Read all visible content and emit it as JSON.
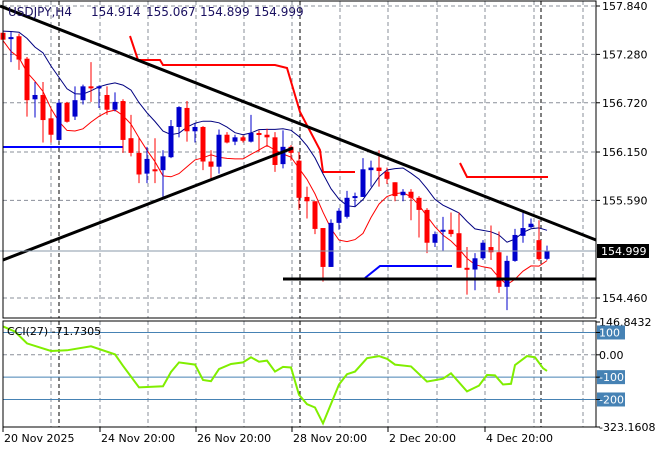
{
  "header": {
    "symbol": "USDJPY,H4",
    "open": "154.914",
    "high": "155.067",
    "low": "154.899",
    "close": "154.999"
  },
  "price_axis": {
    "labels": [
      "157.840",
      "157.280",
      "156.720",
      "156.150",
      "155.590",
      "154.460"
    ],
    "current": "154.999"
  },
  "time_axis": {
    "labels": [
      "20 Nov 2025",
      "24 Nov 20:00",
      "26 Nov 20:00",
      "28 Nov 20:00",
      "2 Dec 20:00",
      "4 Dec 20:00"
    ]
  },
  "indicator": {
    "label": "CCI(27) -71.7305",
    "axis_labels": {
      "max": "146.8432",
      "l100": "100",
      "zero": "0.00",
      "m100": "-100",
      "m200": "-200",
      "min": "-323.1608"
    }
  },
  "colors": {
    "bull": "#0000cc",
    "bear": "#ff0000",
    "ma_upper": "#000080",
    "ma_lower": "#ff0000",
    "cci": "#80ee00",
    "levels": "#4682b4",
    "trendline": "#000000"
  },
  "chart_data": {
    "type": "candlestick",
    "symbol": "USDJPY",
    "timeframe": "H4",
    "ylim": [
      154.46,
      157.84
    ],
    "candles": [
      [
        157.53,
        157.55,
        157.44,
        157.45
      ],
      [
        157.47,
        157.54,
        157.19,
        157.48
      ],
      [
        157.49,
        157.52,
        157.1,
        157.22
      ],
      [
        157.23,
        157.25,
        156.56,
        156.75
      ],
      [
        156.76,
        156.96,
        156.55,
        156.81
      ],
      [
        156.81,
        156.96,
        156.26,
        156.52
      ],
      [
        156.54,
        156.64,
        156.26,
        156.35
      ],
      [
        156.29,
        156.75,
        156.28,
        156.72
      ],
      [
        156.72,
        156.73,
        156.49,
        156.5
      ],
      [
        156.56,
        156.91,
        156.52,
        156.75
      ],
      [
        156.75,
        156.93,
        156.7,
        156.91
      ],
      [
        156.91,
        157.19,
        156.73,
        156.89
      ],
      [
        156.89,
        156.92,
        156.66,
        156.91
      ],
      [
        156.81,
        156.91,
        156.58,
        156.64
      ],
      [
        156.64,
        156.84,
        156.62,
        156.73
      ],
      [
        156.74,
        156.76,
        156.14,
        156.29
      ],
      [
        156.31,
        156.58,
        156.1,
        156.14
      ],
      [
        156.14,
        156.32,
        155.79,
        155.89
      ],
      [
        155.9,
        156.21,
        155.79,
        156.07
      ],
      [
        155.95,
        156.31,
        155.79,
        155.93
      ],
      [
        155.94,
        156.17,
        155.63,
        156.1
      ],
      [
        156.09,
        156.52,
        156.08,
        156.45
      ],
      [
        156.44,
        156.68,
        156.32,
        156.67
      ],
      [
        156.66,
        156.74,
        156.27,
        156.39
      ],
      [
        156.39,
        156.48,
        156.26,
        156.44
      ],
      [
        156.44,
        156.45,
        155.94,
        156.04
      ],
      [
        156.04,
        156.17,
        155.84,
        155.98
      ],
      [
        155.98,
        156.41,
        155.9,
        156.35
      ],
      [
        156.35,
        156.38,
        156.25,
        156.26
      ],
      [
        156.27,
        156.35,
        156.23,
        156.32
      ],
      [
        156.32,
        156.34,
        156.26,
        156.28
      ],
      [
        156.27,
        156.58,
        156.26,
        156.37
      ],
      [
        156.37,
        156.4,
        156.15,
        156.35
      ],
      [
        156.35,
        156.42,
        156.21,
        156.32
      ],
      [
        156.32,
        156.38,
        155.92,
        156.0
      ],
      [
        156.01,
        156.4,
        155.96,
        156.21
      ],
      [
        156.21,
        156.23,
        156.05,
        156.14
      ],
      [
        156.05,
        156.15,
        155.48,
        155.62
      ],
      [
        155.63,
        155.75,
        155.38,
        155.58
      ],
      [
        155.58,
        155.58,
        155.2,
        155.26
      ],
      [
        155.27,
        155.27,
        154.65,
        154.82
      ],
      [
        154.82,
        155.37,
        154.82,
        155.33
      ],
      [
        155.33,
        155.5,
        155.25,
        155.47
      ],
      [
        155.4,
        155.7,
        155.38,
        155.62
      ],
      [
        155.62,
        155.68,
        155.52,
        155.64
      ],
      [
        155.63,
        156.08,
        155.63,
        155.95
      ],
      [
        155.94,
        156.05,
        155.75,
        155.97
      ],
      [
        155.97,
        156.17,
        155.75,
        155.93
      ],
      [
        155.92,
        155.97,
        155.78,
        155.84
      ],
      [
        155.8,
        155.8,
        155.58,
        155.64
      ],
      [
        155.65,
        155.72,
        155.58,
        155.69
      ],
      [
        155.69,
        155.72,
        155.36,
        155.62
      ],
      [
        155.62,
        155.64,
        155.16,
        155.48
      ],
      [
        155.48,
        155.5,
        154.98,
        155.1
      ],
      [
        155.1,
        155.23,
        155.05,
        155.2
      ],
      [
        155.23,
        155.4,
        155.0,
        155.25
      ],
      [
        155.25,
        155.45,
        155.17,
        155.2
      ],
      [
        155.21,
        155.45,
        154.81,
        154.81
      ],
      [
        154.81,
        155.05,
        154.5,
        154.8
      ],
      [
        154.79,
        154.98,
        154.55,
        154.92
      ],
      [
        154.92,
        155.13,
        154.9,
        155.1
      ],
      [
        155.05,
        155.3,
        154.9,
        154.99
      ],
      [
        154.99,
        155.23,
        154.52,
        154.59
      ],
      [
        154.59,
        154.95,
        154.32,
        154.89
      ],
      [
        154.89,
        155.26,
        154.88,
        155.19
      ],
      [
        155.18,
        155.45,
        155.1,
        155.27
      ],
      [
        155.28,
        155.38,
        155.27,
        155.32
      ],
      [
        155.13,
        155.36,
        154.89,
        154.91
      ],
      [
        154.914,
        155.067,
        154.899,
        154.999
      ]
    ],
    "cci_ylim": [
      -323.1608,
      146.8432
    ],
    "cci_levels": [
      100,
      0,
      -100,
      -200
    ],
    "cci_points": [
      [
        0,
        127
      ],
      [
        1.5,
        104
      ],
      [
        3,
        51
      ],
      [
        6,
        17
      ],
      [
        8,
        20
      ],
      [
        11,
        38
      ],
      [
        14,
        2
      ],
      [
        15,
        -49
      ],
      [
        17,
        -146
      ],
      [
        20,
        -141
      ],
      [
        21,
        -77
      ],
      [
        22,
        -34
      ],
      [
        24,
        -44
      ],
      [
        25,
        -113
      ],
      [
        26,
        -118
      ],
      [
        27,
        -64
      ],
      [
        28.5,
        -41
      ],
      [
        30,
        -34
      ],
      [
        31,
        -11
      ],
      [
        32,
        -31
      ],
      [
        33,
        -26
      ],
      [
        34,
        -75
      ],
      [
        35,
        -54
      ],
      [
        36,
        -57
      ],
      [
        37,
        -179
      ],
      [
        38,
        -221
      ],
      [
        39,
        -236
      ],
      [
        40,
        -307
      ],
      [
        42,
        -133
      ],
      [
        43,
        -87
      ],
      [
        44,
        -75
      ],
      [
        45.5,
        -15
      ],
      [
        47,
        -6
      ],
      [
        48,
        -18
      ],
      [
        49,
        -44
      ],
      [
        51,
        -52
      ],
      [
        53,
        -120
      ],
      [
        55,
        -107
      ],
      [
        56,
        -83
      ],
      [
        58,
        -164
      ],
      [
        59.5,
        -138
      ],
      [
        60.5,
        -90
      ],
      [
        61.5,
        -92
      ],
      [
        62.5,
        -133
      ],
      [
        63.5,
        -130
      ],
      [
        64,
        -46
      ],
      [
        65.5,
        -6
      ],
      [
        66.5,
        -11
      ],
      [
        67.5,
        -60
      ],
      [
        68,
        -72
      ]
    ]
  }
}
